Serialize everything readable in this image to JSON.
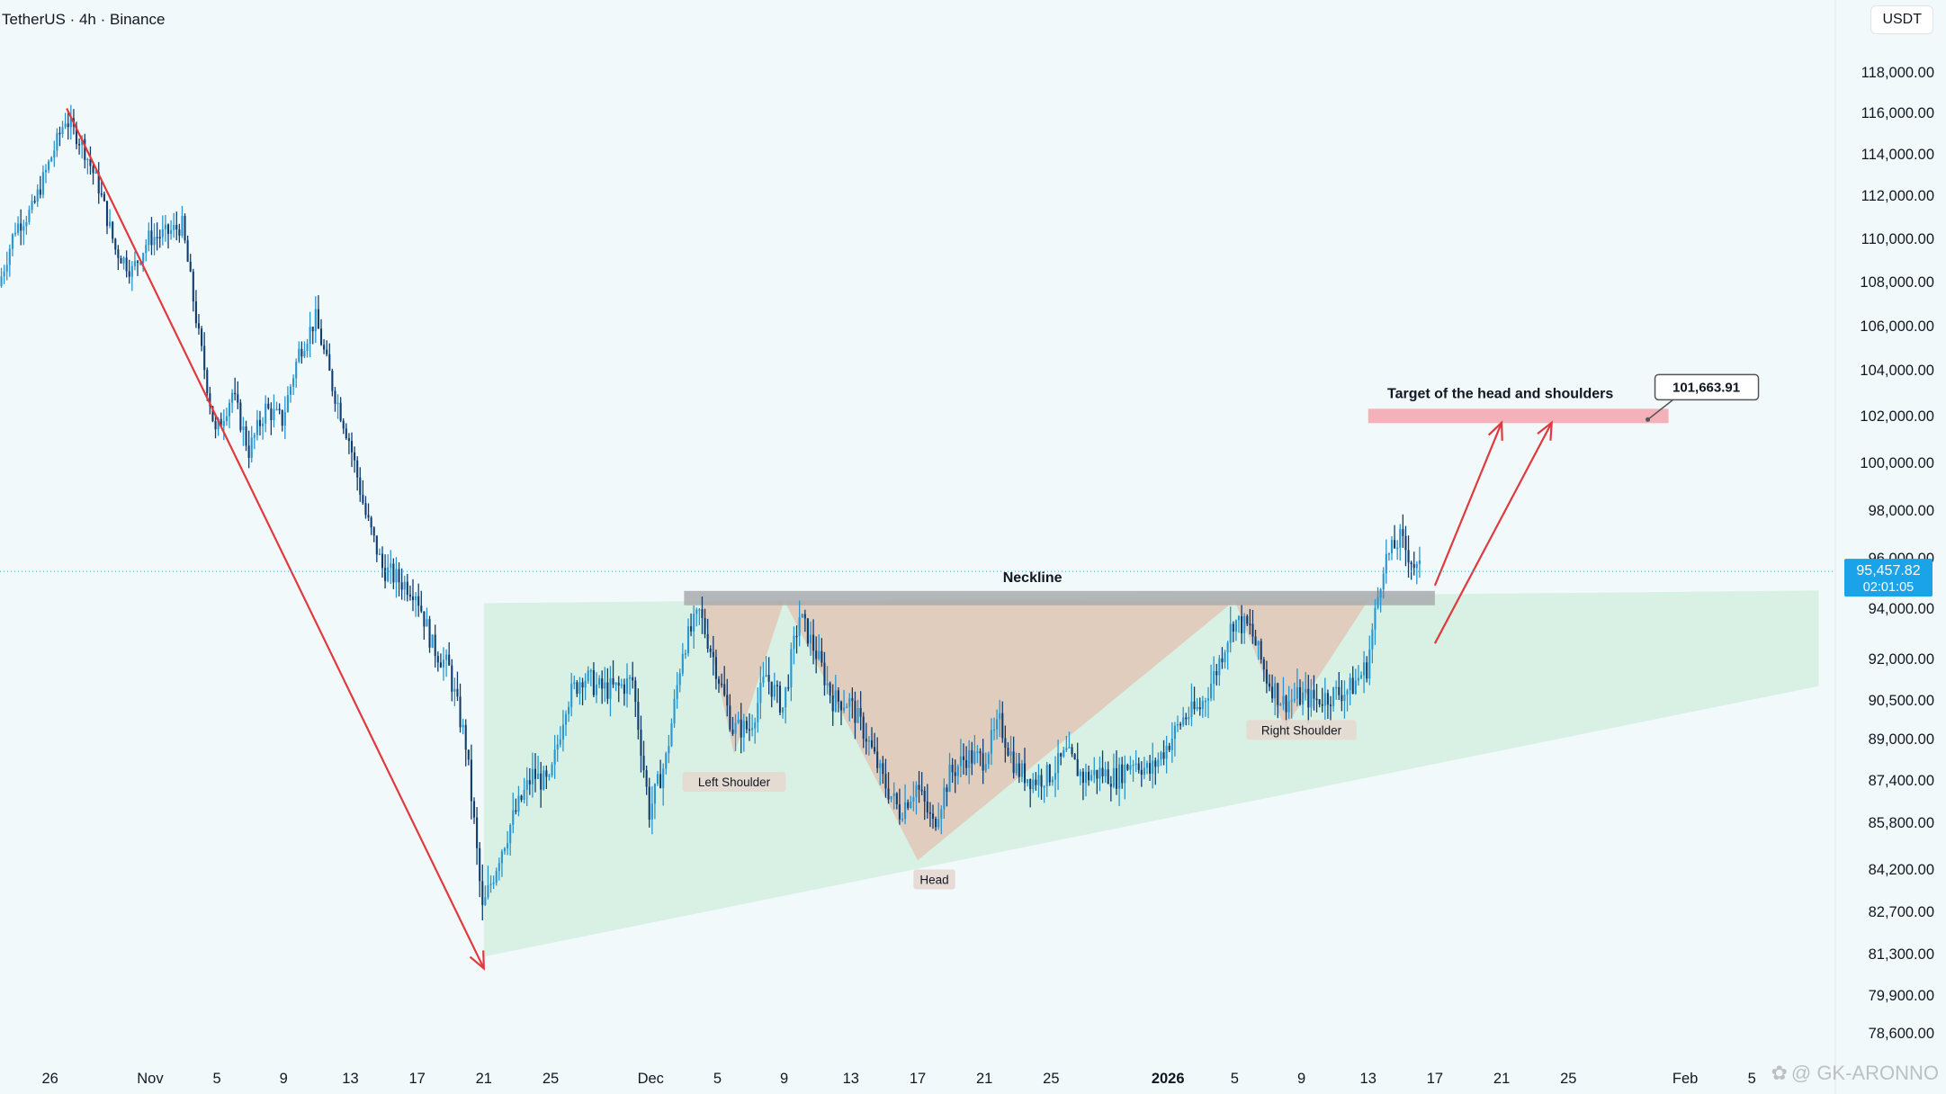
{
  "header": {
    "symbol": "TetherUS · 4h · Binance",
    "currency": "USDT"
  },
  "watermark": {
    "text": "@ GK-ARONNO",
    "icon": "flower-logo-icon"
  },
  "colors": {
    "background": "#f1f9fb",
    "candle_up": "#2896d1",
    "candle_down": "#0f3d70",
    "trend_arrow": "#e0393e",
    "neckline": "#a9acae",
    "pattern_fill": "#e3c4b4",
    "wedge_fill": "#cfeedc",
    "target_zone": "#f4a5ad",
    "price_badge": "#1aa3e8",
    "axis_text": "#131722"
  },
  "chart_data": {
    "type": "candlestick",
    "title": "",
    "xlabel": "",
    "ylabel": "",
    "ylim": [
      77800,
      119800
    ],
    "y_ticks": [
      118000,
      116000,
      114000,
      112000,
      110000,
      108000,
      106000,
      104000,
      102000,
      100000,
      98000,
      96000,
      94000,
      92000,
      90500,
      89000,
      87400,
      85800,
      84200,
      82700,
      81300,
      79900,
      78600
    ],
    "y_tick_labels": [
      "118,000.00",
      "116,000.00",
      "114,000.00",
      "112,000.00",
      "110,000.00",
      "108,000.00",
      "106,000.00",
      "104,000.00",
      "102,000.00",
      "100,000.00",
      "98,000.00",
      "96,000.00",
      "94,000.00",
      "92,000.00",
      "90,500.00",
      "89,000.00",
      "87,400.00",
      "85,800.00",
      "84,200.00",
      "82,700.00",
      "81,300.00",
      "79,900.00",
      "78,600.00"
    ],
    "x_labels": [
      {
        "label": "26",
        "date": "2025-10-26",
        "bold": false
      },
      {
        "label": "Nov",
        "date": "2025-11-01",
        "bold": false
      },
      {
        "label": "5",
        "date": "2025-11-05",
        "bold": false
      },
      {
        "label": "9",
        "date": "2025-11-09",
        "bold": false
      },
      {
        "label": "13",
        "date": "2025-11-13",
        "bold": false
      },
      {
        "label": "17",
        "date": "2025-11-17",
        "bold": false
      },
      {
        "label": "21",
        "date": "2025-11-21",
        "bold": false
      },
      {
        "label": "25",
        "date": "2025-11-25",
        "bold": false
      },
      {
        "label": "Dec",
        "date": "2025-12-01",
        "bold": false
      },
      {
        "label": "5",
        "date": "2025-12-05",
        "bold": false
      },
      {
        "label": "9",
        "date": "2025-12-09",
        "bold": false
      },
      {
        "label": "13",
        "date": "2025-12-13",
        "bold": false
      },
      {
        "label": "17",
        "date": "2025-12-17",
        "bold": false
      },
      {
        "label": "21",
        "date": "2025-12-21",
        "bold": false
      },
      {
        "label": "25",
        "date": "2025-12-25",
        "bold": false
      },
      {
        "label": "2026",
        "date": "2026-01-01",
        "bold": true
      },
      {
        "label": "5",
        "date": "2026-01-05",
        "bold": false
      },
      {
        "label": "9",
        "date": "2026-01-09",
        "bold": false
      },
      {
        "label": "13",
        "date": "2026-01-13",
        "bold": false
      },
      {
        "label": "17",
        "date": "2026-01-17",
        "bold": false
      },
      {
        "label": "21",
        "date": "2026-01-21",
        "bold": false
      },
      {
        "label": "25",
        "date": "2026-01-25",
        "bold": false
      },
      {
        "label": "Feb",
        "date": "2026-02-01",
        "bold": false
      },
      {
        "label": "5",
        "date": "2026-02-05",
        "bold": false
      }
    ],
    "x_range": [
      "2025-10-23",
      "2026-02-10"
    ],
    "price_path": [
      {
        "date": "2025-10-23",
        "price": 107800
      },
      {
        "date": "2025-10-24",
        "price": 110500
      },
      {
        "date": "2025-10-25",
        "price": 111300
      },
      {
        "date": "2025-10-27",
        "price": 115700
      },
      {
        "date": "2025-10-28",
        "price": 114500
      },
      {
        "date": "2025-10-29",
        "price": 112400
      },
      {
        "date": "2025-10-30",
        "price": 109500
      },
      {
        "date": "2025-10-31",
        "price": 108500
      },
      {
        "date": "2025-11-01",
        "price": 110000
      },
      {
        "date": "2025-11-02",
        "price": 110200
      },
      {
        "date": "2025-11-03",
        "price": 110600
      },
      {
        "date": "2025-11-04",
        "price": 105500
      },
      {
        "date": "2025-11-05",
        "price": 101200
      },
      {
        "date": "2025-11-06",
        "price": 103000
      },
      {
        "date": "2025-11-07",
        "price": 100500
      },
      {
        "date": "2025-11-08",
        "price": 102300
      },
      {
        "date": "2025-11-09",
        "price": 101800
      },
      {
        "date": "2025-11-10",
        "price": 104800
      },
      {
        "date": "2025-11-11",
        "price": 106300
      },
      {
        "date": "2025-11-12",
        "price": 103300
      },
      {
        "date": "2025-11-13",
        "price": 101000
      },
      {
        "date": "2025-11-14",
        "price": 97800
      },
      {
        "date": "2025-11-15",
        "price": 95600
      },
      {
        "date": "2025-11-16",
        "price": 95100
      },
      {
        "date": "2025-11-17",
        "price": 94700
      },
      {
        "date": "2025-11-18",
        "price": 92500
      },
      {
        "date": "2025-11-19",
        "price": 91600
      },
      {
        "date": "2025-11-20",
        "price": 88800
      },
      {
        "date": "2025-11-21",
        "price": 82700
      },
      {
        "date": "2025-11-22",
        "price": 84700
      },
      {
        "date": "2025-11-23",
        "price": 86200
      },
      {
        "date": "2025-11-24",
        "price": 87600
      },
      {
        "date": "2025-11-25",
        "price": 87200
      },
      {
        "date": "2025-11-26",
        "price": 90400
      },
      {
        "date": "2025-11-27",
        "price": 91400
      },
      {
        "date": "2025-11-28",
        "price": 90900
      },
      {
        "date": "2025-11-29",
        "price": 90900
      },
      {
        "date": "2025-11-30",
        "price": 91200
      },
      {
        "date": "2025-12-01",
        "price": 86200
      },
      {
        "date": "2025-12-02",
        "price": 88200
      },
      {
        "date": "2025-12-03",
        "price": 92400
      },
      {
        "date": "2025-12-04",
        "price": 93800
      },
      {
        "date": "2025-12-05",
        "price": 91700
      },
      {
        "date": "2025-12-06",
        "price": 89400
      },
      {
        "date": "2025-12-07",
        "price": 89400
      },
      {
        "date": "2025-12-08",
        "price": 91400
      },
      {
        "date": "2025-12-09",
        "price": 90200
      },
      {
        "date": "2025-12-10",
        "price": 93700
      },
      {
        "date": "2025-12-11",
        "price": 92200
      },
      {
        "date": "2025-12-12",
        "price": 90500
      },
      {
        "date": "2025-12-13",
        "price": 90400
      },
      {
        "date": "2025-12-14",
        "price": 89100
      },
      {
        "date": "2025-12-15",
        "price": 87400
      },
      {
        "date": "2025-12-16",
        "price": 86200
      },
      {
        "date": "2025-12-17",
        "price": 87200
      },
      {
        "date": "2025-12-18",
        "price": 85700
      },
      {
        "date": "2025-12-19",
        "price": 87600
      },
      {
        "date": "2025-12-20",
        "price": 88300
      },
      {
        "date": "2025-12-21",
        "price": 88200
      },
      {
        "date": "2025-12-22",
        "price": 89600
      },
      {
        "date": "2025-12-23",
        "price": 87800
      },
      {
        "date": "2025-12-24",
        "price": 87400
      },
      {
        "date": "2025-12-25",
        "price": 87600
      },
      {
        "date": "2025-12-26",
        "price": 88400
      },
      {
        "date": "2025-12-27",
        "price": 87500
      },
      {
        "date": "2025-12-28",
        "price": 87700
      },
      {
        "date": "2025-12-29",
        "price": 87500
      },
      {
        "date": "2025-12-30",
        "price": 88200
      },
      {
        "date": "2025-12-31",
        "price": 87700
      },
      {
        "date": "2026-01-01",
        "price": 88700
      },
      {
        "date": "2026-01-02",
        "price": 89800
      },
      {
        "date": "2026-01-03",
        "price": 90200
      },
      {
        "date": "2026-01-04",
        "price": 91600
      },
      {
        "date": "2026-01-05",
        "price": 93500
      },
      {
        "date": "2026-01-06",
        "price": 93200
      },
      {
        "date": "2026-01-07",
        "price": 91300
      },
      {
        "date": "2026-01-08",
        "price": 90400
      },
      {
        "date": "2026-01-09",
        "price": 90600
      },
      {
        "date": "2026-01-10",
        "price": 90500
      },
      {
        "date": "2026-01-11",
        "price": 90700
      },
      {
        "date": "2026-01-12",
        "price": 90900
      },
      {
        "date": "2026-01-13",
        "price": 91700
      },
      {
        "date": "2026-01-14",
        "price": 95800
      },
      {
        "date": "2026-01-15",
        "price": 96800
      },
      {
        "date": "2026-01-16",
        "price": 95500
      }
    ],
    "current_price": {
      "value": 95457.82,
      "label": "95,457.82",
      "countdown": "02:01:05"
    },
    "neckline": {
      "label": "Neckline",
      "price": 94400,
      "start": "2025-12-03",
      "end": "2026-01-17"
    },
    "target": {
      "label": "Target of the head and shoulders",
      "value_label": "101,663.91",
      "low": 101700,
      "high": 102300,
      "start": "2026-01-13",
      "end": "2026-01-31"
    },
    "pattern_labels": [
      {
        "label": "Left Shoulder",
        "date": "2025-12-06",
        "price": 87300
      },
      {
        "label": "Head",
        "date": "2025-12-18",
        "price": 83800
      },
      {
        "label": "Right Shoulder",
        "date": "2026-01-09",
        "price": 89300
      }
    ],
    "pattern_triangles": [
      {
        "points": [
          [
            "2025-12-04",
            94300
          ],
          [
            "2025-12-06",
            88400
          ],
          [
            "2025-12-09",
            94300
          ]
        ]
      },
      {
        "points": [
          [
            "2025-12-09",
            94300
          ],
          [
            "2025-12-17",
            84500
          ],
          [
            "2026-01-05",
            94300
          ]
        ]
      },
      {
        "points": [
          [
            "2026-01-05",
            94300
          ],
          [
            "2026-01-08",
            89400
          ],
          [
            "2026-01-13",
            94300
          ]
        ]
      }
    ],
    "wedge": {
      "points": [
        [
          "2025-11-21",
          94200
        ],
        [
          "2026-02-09",
          94700
        ],
        [
          "2026-02-09",
          91000
        ],
        [
          "2025-11-21",
          81200
        ]
      ]
    },
    "arrows": [
      {
        "from": [
          "2025-10-27",
          116200
        ],
        "to": [
          "2025-11-21",
          80800
        ]
      },
      {
        "from": [
          "2026-01-17",
          94900
        ],
        "to": [
          "2026-01-21",
          101700
        ]
      },
      {
        "from": [
          "2026-01-17",
          92600
        ],
        "to": [
          "2026-01-24",
          101700
        ]
      }
    ]
  }
}
